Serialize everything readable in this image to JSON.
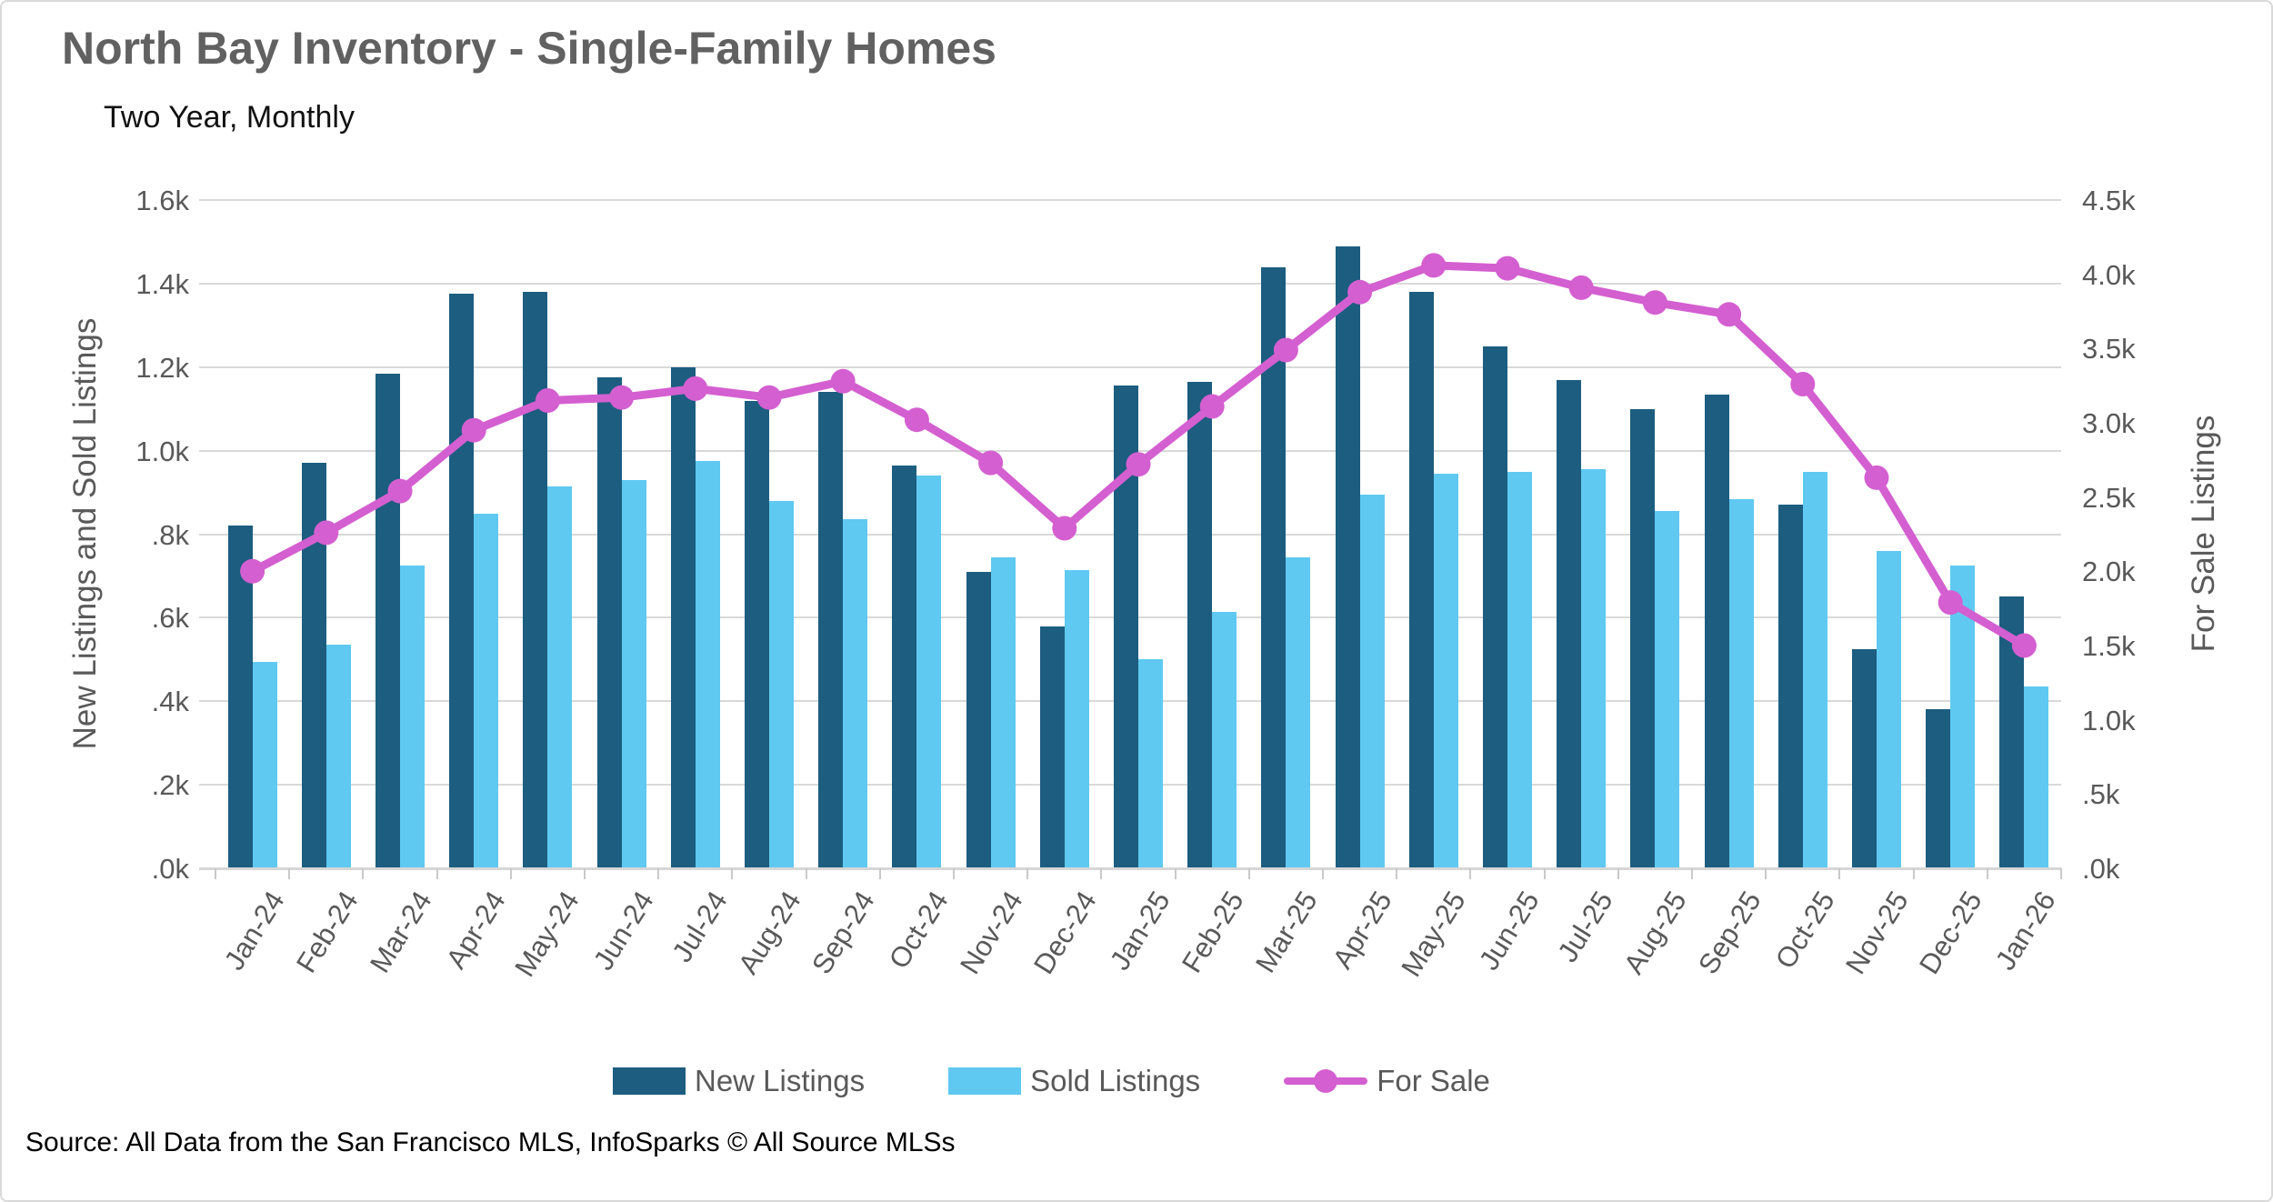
{
  "header": {
    "title": "North Bay Inventory - Single-Family Homes",
    "subtitle": "Two Year, Monthly"
  },
  "colors": {
    "new_listings": "#1c5d80",
    "sold_listings": "#5fc9f1",
    "for_sale": "#d45fd0",
    "gridline": "#d9d9d9",
    "axis_text": "#595959"
  },
  "legend": {
    "items": [
      {
        "label": "New Listings",
        "marker": "swatch",
        "color": "#1c5d80"
      },
      {
        "label": "Sold Listings",
        "marker": "swatch",
        "color": "#5fc9f1"
      },
      {
        "label": "For Sale",
        "marker": "line",
        "color": "#d45fd0"
      }
    ]
  },
  "footer": {
    "source": "Source: All Data from the San Francisco MLS, InfoSparks © All Source MLSs"
  },
  "chart_data": {
    "type": "combo",
    "subtypes": [
      "bar",
      "bar",
      "line"
    ],
    "title": "North Bay Inventory - Single-Family Homes",
    "subtitle": "Two Year, Monthly",
    "grid": true,
    "legend_position": "bottom",
    "categories": [
      "Jan-24",
      "Feb-24",
      "Mar-24",
      "Apr-24",
      "May-24",
      "Jun-24",
      "Jul-24",
      "Aug-24",
      "Sep-24",
      "Oct-24",
      "Nov-24",
      "Dec-24",
      "Jan-25",
      "Feb-25",
      "Mar-25",
      "Apr-25",
      "May-25",
      "Jun-25",
      "Jul-25",
      "Aug-25",
      "Sep-25",
      "Oct-25",
      "Nov-25",
      "Dec-25",
      "Jan-26"
    ],
    "series": [
      {
        "name": "New Listings",
        "type": "bar",
        "axis": "left",
        "color": "#1c5d80",
        "values": [
          820,
          970,
          1185,
          1375,
          1380,
          1175,
          1200,
          1120,
          1140,
          965,
          710,
          580,
          1155,
          1165,
          1440,
          1490,
          1380,
          1250,
          1170,
          1100,
          1135,
          870,
          525,
          380,
          650
        ]
      },
      {
        "name": "Sold Listings",
        "type": "bar",
        "axis": "left",
        "color": "#5fc9f1",
        "values": [
          495,
          535,
          725,
          850,
          915,
          930,
          975,
          880,
          835,
          940,
          745,
          715,
          500,
          615,
          745,
          895,
          945,
          950,
          955,
          855,
          885,
          950,
          760,
          725,
          435
        ]
      },
      {
        "name": "For Sale",
        "type": "line",
        "axis": "right",
        "color": "#d45fd0",
        "values": [
          2000,
          2260,
          2540,
          2950,
          3150,
          3170,
          3230,
          3170,
          3280,
          3020,
          2730,
          2290,
          2720,
          3110,
          3490,
          3880,
          4060,
          4040,
          3910,
          3810,
          3730,
          3260,
          2630,
          1790,
          1500
        ]
      }
    ],
    "left_axis": {
      "label": "New Listings and Sold Listings",
      "min": 0,
      "max": 1600,
      "ticks": [
        "1.6k",
        "1.4k",
        "1.2k",
        "1.0k",
        ".8k",
        ".6k",
        ".4k",
        ".2k",
        ".0k"
      ]
    },
    "right_axis": {
      "label": "For Sale Listings",
      "min": 0,
      "max": 4500,
      "ticks": [
        "4.5k",
        "4.0k",
        "3.5k",
        "3.0k",
        "2.5k",
        "2.0k",
        "1.5k",
        "1.0k",
        ".5k",
        ".0k"
      ]
    }
  }
}
